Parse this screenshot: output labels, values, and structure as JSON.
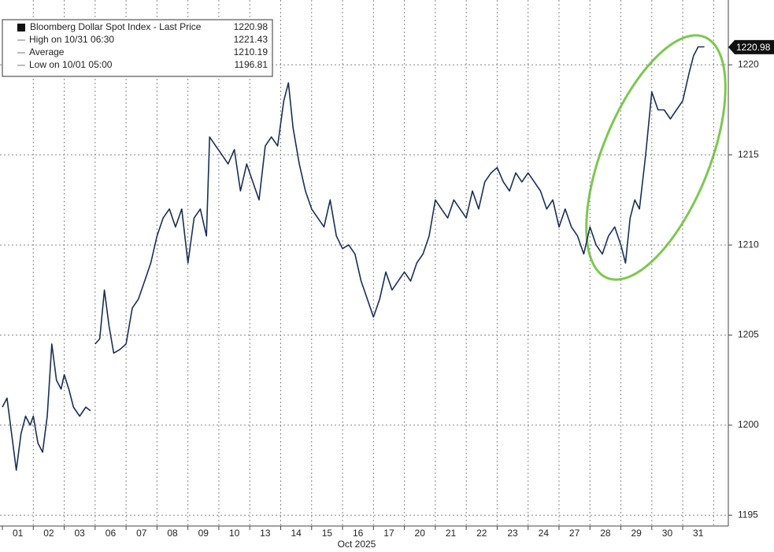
{
  "chart_data": {
    "type": "line",
    "categories": [
      "01",
      "02",
      "03",
      "06",
      "07",
      "08",
      "09",
      "10",
      "13",
      "14",
      "15",
      "16",
      "17",
      "20",
      "21",
      "22",
      "23",
      "24",
      "27",
      "28",
      "29",
      "30",
      "31"
    ],
    "x_label": "Oct 2025",
    "series": [
      {
        "name": "Bloomberg Dollar Spot Index - Last Price",
        "color": "#1a2f55",
        "x": [
          0.0,
          0.15,
          0.3,
          0.45,
          0.6,
          0.75,
          0.9,
          1.0,
          1.15,
          1.3,
          1.45,
          1.6,
          1.75,
          1.9,
          2.0,
          2.15,
          2.3,
          2.5,
          2.7,
          2.85,
          2.95,
          3.0,
          3.15,
          3.3,
          3.45,
          3.6,
          3.8,
          4.0,
          4.2,
          4.4,
          4.6,
          4.8,
          5.0,
          5.2,
          5.4,
          5.6,
          5.8,
          6.0,
          6.2,
          6.4,
          6.6,
          6.7,
          6.9,
          7.1,
          7.3,
          7.5,
          7.7,
          7.9,
          8.1,
          8.3,
          8.5,
          8.7,
          8.9,
          9.1,
          9.25,
          9.4,
          9.6,
          9.8,
          10.0,
          10.2,
          10.4,
          10.6,
          10.8,
          11.0,
          11.2,
          11.4,
          11.6,
          11.8,
          12.0,
          12.2,
          12.4,
          12.6,
          12.8,
          13.0,
          13.2,
          13.4,
          13.6,
          13.8,
          14.0,
          14.2,
          14.4,
          14.6,
          14.8,
          15.0,
          15.2,
          15.4,
          15.6,
          15.8,
          16.0,
          16.2,
          16.4,
          16.6,
          16.8,
          17.0,
          17.2,
          17.4,
          17.6,
          17.8,
          18.0,
          18.2,
          18.4,
          18.6,
          18.8,
          19.0,
          19.2,
          19.4,
          19.6,
          19.8,
          20.0,
          20.15,
          20.3,
          20.45,
          20.6,
          20.8,
          21.0,
          21.2,
          21.4,
          21.6,
          21.8,
          22.0,
          22.2,
          22.35,
          22.5,
          22.7
        ],
        "values": [
          1201.0,
          1201.5,
          1199.5,
          1197.5,
          1199.5,
          1200.5,
          1200.0,
          1200.5,
          1199.0,
          1198.5,
          1200.5,
          1204.5,
          1202.5,
          1202.0,
          1202.8,
          1202.0,
          1201.0,
          1200.5,
          1201.0,
          1200.8,
          null,
          1204.5,
          1204.8,
          1207.5,
          1205.5,
          1204.0,
          1204.2,
          1204.5,
          1206.5,
          1207.0,
          1208.0,
          1209.0,
          1210.5,
          1211.5,
          1212.0,
          1211.0,
          1212.0,
          1209.0,
          1211.5,
          1212.0,
          1210.5,
          1216.0,
          1215.5,
          1215.0,
          1214.5,
          1215.3,
          1213.0,
          1214.5,
          1213.5,
          1212.5,
          1215.5,
          1216.0,
          1215.5,
          1218.0,
          1219.0,
          1216.5,
          1214.5,
          1213.0,
          1212.0,
          1211.5,
          1211.0,
          1212.5,
          1210.5,
          1209.8,
          1210.0,
          1209.5,
          1208.0,
          1207.0,
          1206.0,
          1207.0,
          1208.5,
          1207.5,
          1208.0,
          1208.5,
          1208.0,
          1209.0,
          1209.5,
          1210.5,
          1212.5,
          1212.0,
          1211.5,
          1212.5,
          1212.0,
          1211.5,
          1213.0,
          1212.0,
          1213.5,
          1214.0,
          1214.3,
          1213.5,
          1213.0,
          1214.0,
          1213.5,
          1214.0,
          1213.5,
          1213.0,
          1212.0,
          1212.5,
          1211.0,
          1212.0,
          1211.0,
          1210.5,
          1209.5,
          1211.0,
          1210.0,
          1209.5,
          1210.5,
          1211.0,
          1210.0,
          1209.0,
          1211.5,
          1212.5,
          1212.0,
          1215.0,
          1218.5,
          1217.5,
          1217.5,
          1217.0,
          1217.5,
          1218.0,
          1219.5,
          1220.5,
          1221.0,
          1221.0
        ]
      }
    ],
    "xlim": [
      0,
      23.5
    ],
    "ylim": [
      1194.4,
      1223.6
    ],
    "yticks": [
      1195,
      1200,
      1205,
      1210,
      1215,
      1220
    ],
    "grid": true,
    "legend": [
      {
        "label": "Bloomberg Dollar Spot Index - Last Price",
        "value": 1220.98
      },
      {
        "label": "High on 10/31 06:30",
        "value": 1221.43
      },
      {
        "label": "Average",
        "value": 1210.19
      },
      {
        "label": "Low on 10/01 05:00",
        "value": 1196.81
      }
    ],
    "last_price": 1220.98
  }
}
